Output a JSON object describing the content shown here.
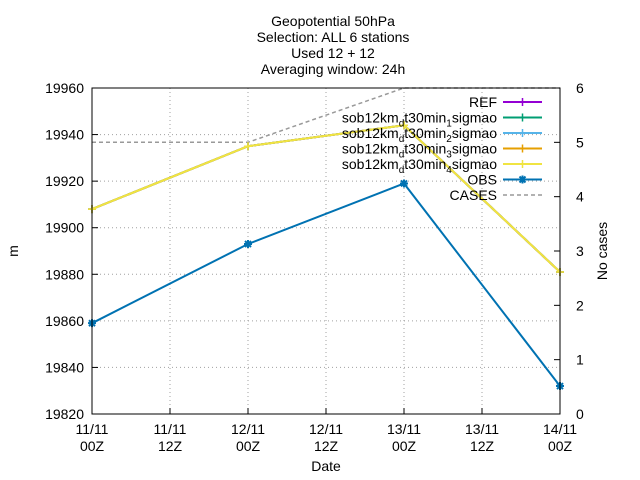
{
  "chart_data": {
    "type": "line",
    "title_lines": [
      "Geopotential 50hPa",
      "Selection: ALL      6 stations",
      "Used 12 + 12",
      "Averaging window: 24h"
    ],
    "xlabel": "Date",
    "ylabel": "m",
    "y2label": "No cases",
    "x_ticks": [
      {
        "top": "11/11",
        "bottom": "00Z"
      },
      {
        "top": "11/11",
        "bottom": "12Z"
      },
      {
        "top": "12/11",
        "bottom": "00Z"
      },
      {
        "top": "12/11",
        "bottom": "12Z"
      },
      {
        "top": "13/11",
        "bottom": "00Z"
      },
      {
        "top": "13/11",
        "bottom": "12Z"
      },
      {
        "top": "14/11",
        "bottom": "00Z"
      }
    ],
    "xlim": [
      0,
      72
    ],
    "ylim": [
      19820,
      19960
    ],
    "y_ticks": [
      "19820",
      "19840",
      "19860",
      "19880",
      "19900",
      "19920",
      "19940",
      "19960"
    ],
    "y2lim": [
      0,
      6
    ],
    "y2_ticks": [
      "0",
      "1",
      "2",
      "3",
      "4",
      "5",
      "6"
    ],
    "grid": true,
    "legend_position": "top-right",
    "series": [
      {
        "name": "REF",
        "name_parts": [
          "REF"
        ],
        "color": "#9400d3",
        "marker": "plus",
        "x": [
          0,
          24,
          48,
          72
        ],
        "values": [
          19908,
          19935,
          19944,
          19881
        ]
      },
      {
        "name": "sob12km_dt30min_1sigmao",
        "name_parts": [
          "sob12km",
          "d",
          "t30min",
          "1",
          "sigmao"
        ],
        "color": "#009e73",
        "marker": "plus",
        "x": [
          0,
          24,
          48,
          72
        ],
        "values": [
          19908,
          19935,
          19944,
          19881
        ]
      },
      {
        "name": "sob12km_dt30min_2sigmao",
        "name_parts": [
          "sob12km",
          "d",
          "t30min",
          "2",
          "sigmao"
        ],
        "color": "#56b4e9",
        "marker": "plus",
        "x": [
          0,
          24,
          48,
          72
        ],
        "values": [
          19908,
          19935,
          19944,
          19881
        ]
      },
      {
        "name": "sob12km_dt30min_3sigmao",
        "name_parts": [
          "sob12km",
          "d",
          "t30min",
          "3",
          "sigmao"
        ],
        "color": "#e69f00",
        "marker": "plus",
        "x": [
          0,
          24,
          48,
          72
        ],
        "values": [
          19908,
          19935,
          19944,
          19881
        ]
      },
      {
        "name": "sob12km_dt30min_4sigmao",
        "name_parts": [
          "sob12km",
          "d",
          "t30min",
          "4",
          "sigmao"
        ],
        "color": "#f0e442",
        "marker": "plus",
        "x": [
          0,
          24,
          48,
          72
        ],
        "values": [
          19908,
          19935,
          19944,
          19881
        ]
      },
      {
        "name": "OBS",
        "name_parts": [
          "OBS"
        ],
        "color": "#0072b2",
        "marker": "star",
        "x": [
          0,
          24,
          48,
          72
        ],
        "values": [
          19859,
          19893,
          19919,
          19832
        ]
      },
      {
        "name": "CASES",
        "name_parts": [
          "CASES"
        ],
        "color": "#999999",
        "axis": "y2",
        "dashed": true,
        "x": [
          0,
          24,
          48,
          72
        ],
        "values": [
          5,
          5,
          6,
          6
        ]
      }
    ]
  }
}
